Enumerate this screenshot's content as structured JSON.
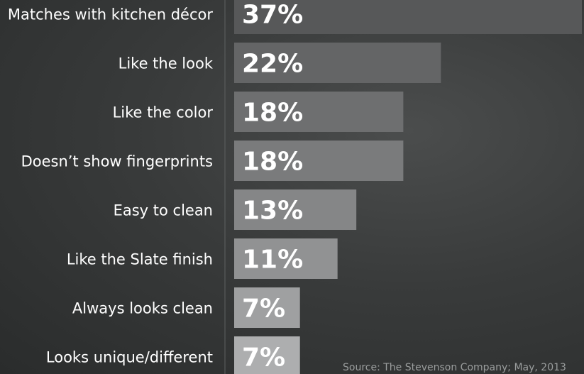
{
  "chart_data": {
    "type": "bar",
    "orientation": "horizontal",
    "categories": [
      "Matches with kitchen décor",
      "Like the look",
      "Like the color",
      "Doesn’t show fingerprints",
      "Easy to clean",
      "Like the Slate finish",
      "Always looks clean",
      "Looks unique/different"
    ],
    "values": [
      37,
      22,
      18,
      18,
      13,
      11,
      7,
      7
    ],
    "value_labels": [
      "37%",
      "22%",
      "18%",
      "18%",
      "13%",
      "11%",
      "7%",
      "7%"
    ],
    "unit": "%",
    "xlim": [
      0,
      37
    ],
    "grid": false,
    "legend": "none",
    "bar_colors": [
      "#575859",
      "#646566",
      "#6e6f70",
      "#7a7b7c",
      "#858687",
      "#919293",
      "#9fa0a1",
      "#adaeaf"
    ],
    "label_color": "#ffffff"
  },
  "source_note": "Source: The Stevenson Company; May, 2013"
}
